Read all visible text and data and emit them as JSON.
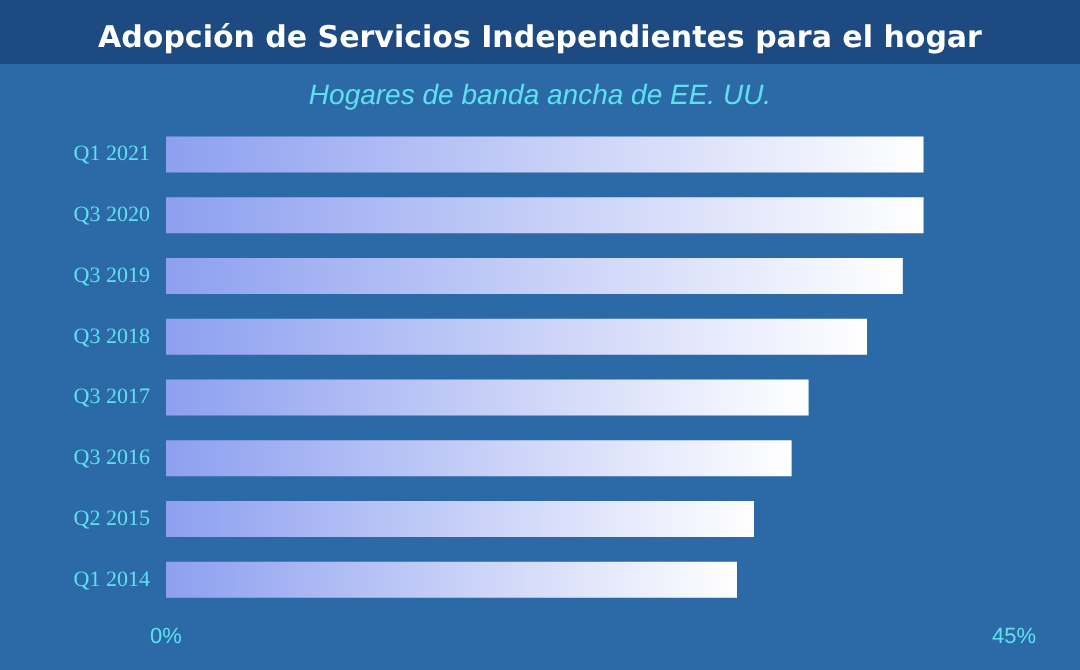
{
  "chart_data": {
    "type": "bar",
    "orientation": "horizontal",
    "title": "Adopción de Servicios Independientes para el hogar",
    "subtitle": "Hogares de banda ancha de EE. UU.",
    "categories": [
      "Q1 2021",
      "Q3 2020",
      "Q3 2019",
      "Q3 2018",
      "Q3 2017",
      "Q3 2016",
      "Q2 2015",
      "Q1 2014"
    ],
    "values": [
      40.2,
      40.2,
      39.1,
      37.2,
      34.1,
      33.2,
      31.2,
      30.3
    ],
    "color": "#8d9ff0",
    "xlim": [
      0,
      45
    ],
    "xticks": [
      {
        "value": 0,
        "label": "0%"
      },
      {
        "value": 45,
        "label": "45%"
      }
    ],
    "grid": false
  }
}
